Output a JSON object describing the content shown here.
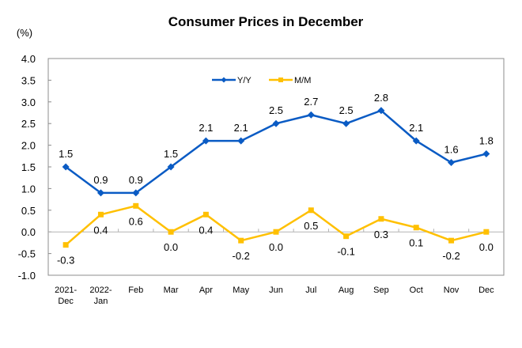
{
  "chart_data": {
    "type": "line",
    "title": "Consumer Prices in December",
    "ylabel": "(%)",
    "xlabel": "",
    "ylim": [
      -1.0,
      4.0
    ],
    "ytick_step": 0.5,
    "yticks": [
      "4.0",
      "3.5",
      "3.0",
      "2.5",
      "2.0",
      "1.5",
      "1.0",
      "0.5",
      "0.0",
      "-0.5",
      "-1.0"
    ],
    "categories": [
      [
        "2021-",
        "Dec"
      ],
      [
        "2022-",
        "Jan"
      ],
      [
        "Feb"
      ],
      [
        "Mar"
      ],
      [
        "Apr"
      ],
      [
        "May"
      ],
      [
        "Jun"
      ],
      [
        "Jul"
      ],
      [
        "Aug"
      ],
      [
        "Sep"
      ],
      [
        "Oct"
      ],
      [
        "Nov"
      ],
      [
        "Dec"
      ]
    ],
    "grid": false,
    "legend": "top-center",
    "series": [
      {
        "name": "Y/Y",
        "color": "#0A5BC4",
        "marker": "diamond",
        "label_position": "above",
        "values": [
          1.5,
          0.9,
          0.9,
          1.5,
          2.1,
          2.1,
          2.5,
          2.7,
          2.5,
          2.8,
          2.1,
          1.6,
          1.8
        ],
        "labels": [
          "1.5",
          "0.9",
          "0.9",
          "1.5",
          "2.1",
          "2.1",
          "2.5",
          "2.7",
          "2.5",
          "2.8",
          "2.1",
          "1.6",
          "1.8"
        ]
      },
      {
        "name": "M/M",
        "color": "#FFC000",
        "marker": "square",
        "label_position": "below",
        "values": [
          -0.3,
          0.4,
          0.6,
          0.0,
          0.4,
          -0.2,
          0.0,
          0.5,
          -0.1,
          0.3,
          0.1,
          -0.2,
          0.0
        ],
        "labels": [
          "-0.3",
          "0.4",
          "0.6",
          "0.0",
          "0.4",
          "-0.2",
          "0.0",
          "0.5",
          "-0.1",
          "0.3",
          "0.1",
          "-0.2",
          "0.0"
        ]
      }
    ]
  }
}
